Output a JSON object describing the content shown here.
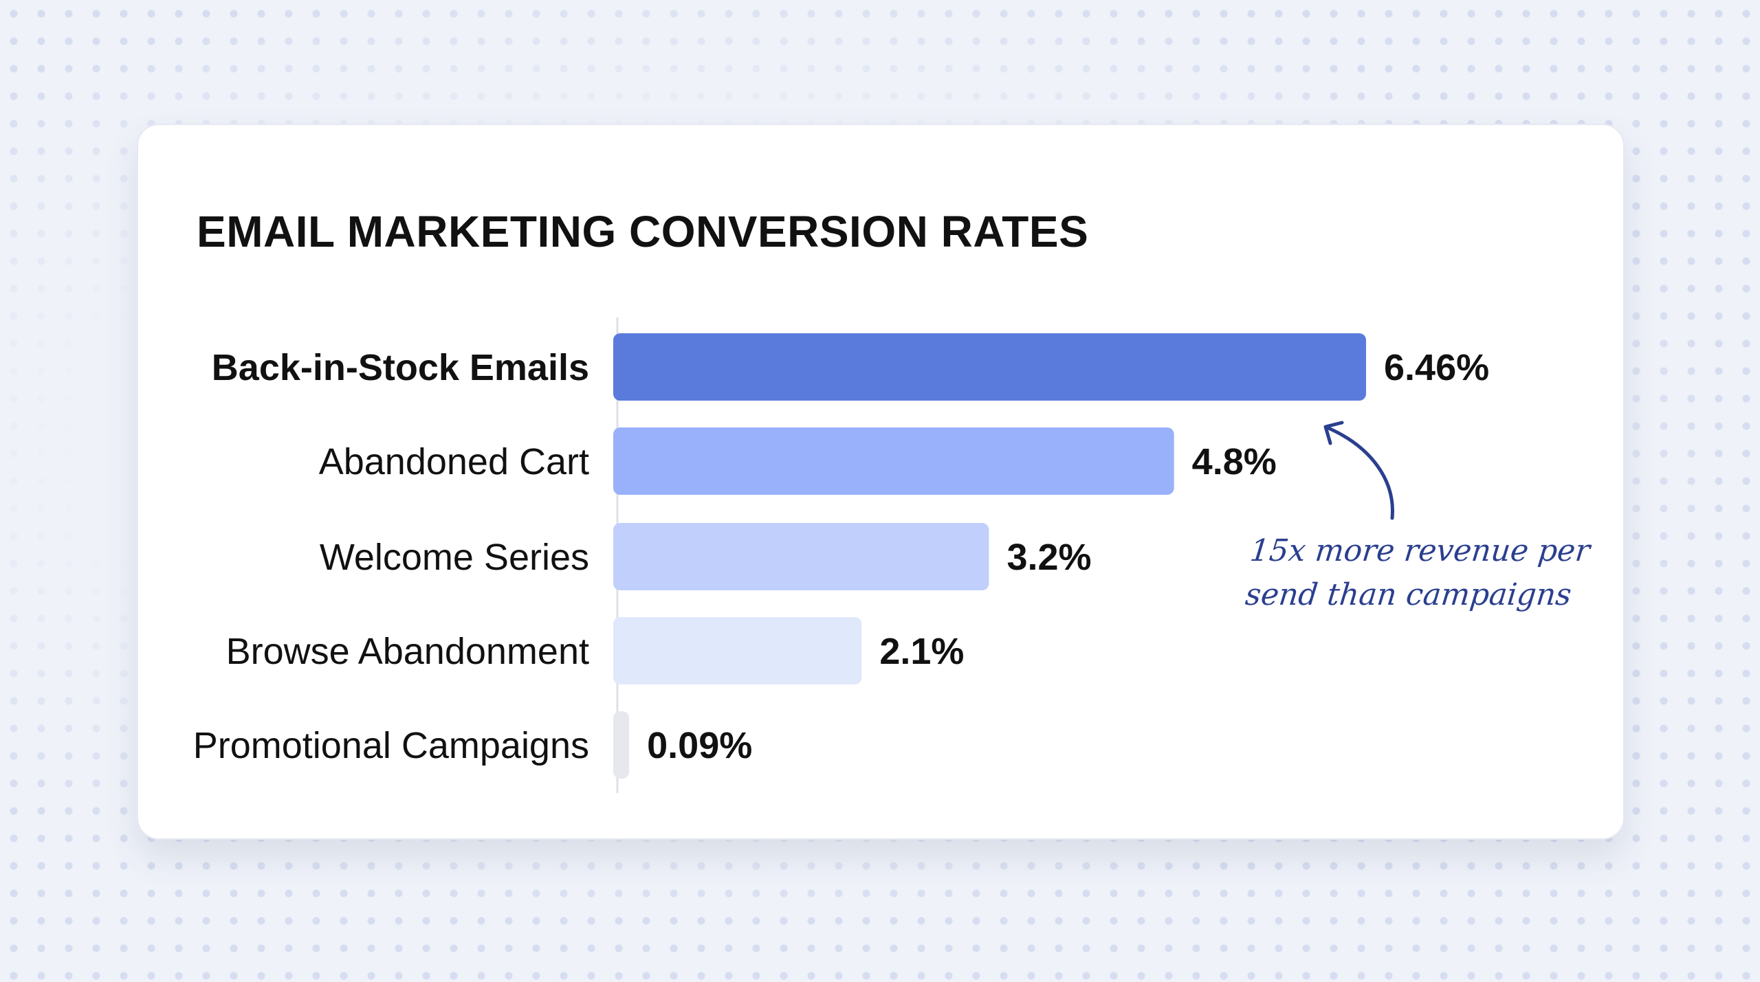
{
  "chart_data": {
    "type": "bar",
    "orientation": "horizontal",
    "title": "EMAIL MARKETING CONVERSION RATES",
    "categories": [
      "Back-in-Stock Emails",
      "Abandoned Cart",
      "Welcome Series",
      "Browse Abandonment",
      "Promotional Campaigns"
    ],
    "values": [
      6.46,
      4.8,
      3.2,
      2.1,
      0.09
    ],
    "value_labels": [
      "6.46%",
      "4.8%",
      "3.2%",
      "2.1%",
      "0.09%"
    ],
    "unit": "%",
    "colors": [
      "#5a7bdb",
      "#98b1fa",
      "#c0cffb",
      "#e0e8fc",
      "#e6e8ee"
    ],
    "highlighted_category": "Back-in-Stock Emails",
    "xlim": [
      0,
      6.46
    ],
    "grid": false,
    "annotation": {
      "text_line1": "15x more revenue per",
      "text_line2": "send than campaigns",
      "points_to": "Back-in-Stock Emails",
      "color": "#2b3f8f"
    }
  }
}
